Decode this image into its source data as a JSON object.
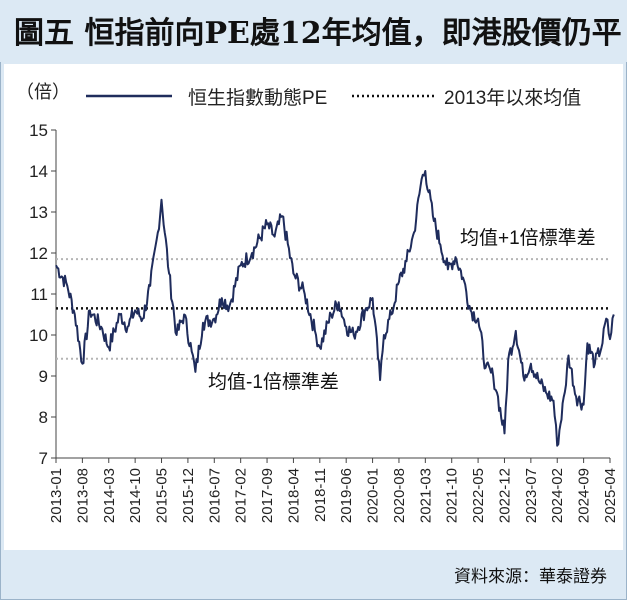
{
  "title": "圖五 恒指前向PE處12年均值，即港股價仍平",
  "source": "資料來源：華泰證券",
  "colors": {
    "series": "#1f2c5c",
    "mean": "#111111",
    "band": "#b5b5b5",
    "background": "#dce9f4"
  },
  "chart_data": {
    "type": "line",
    "yunit": "（倍）",
    "ylim": [
      7,
      15
    ],
    "yticks": [
      "15",
      "14",
      "13",
      "12",
      "11",
      "10",
      "9",
      "8",
      "7"
    ],
    "xticks": [
      "2013-01",
      "2013-08",
      "2014-03",
      "2014-10",
      "2015-05",
      "2015-12",
      "2016-07",
      "2017-02",
      "2017-09",
      "2018-04",
      "2018-11",
      "2019-06",
      "2020-01",
      "2020-08",
      "2021-03",
      "2021-10",
      "2022-05",
      "2022-12",
      "2023-07",
      "2024-02",
      "2024-09",
      "2025-04"
    ],
    "legend": [
      {
        "label": "恒生指數動態PE",
        "style": "solid"
      },
      {
        "label": "2013年以來均值",
        "style": "dotted"
      }
    ],
    "mean": 10.65,
    "upper": 11.85,
    "lower": 9.42,
    "annotations": {
      "upper": "均值+1倍標準差",
      "lower": "均值-1倍標準差"
    },
    "series": [
      {
        "name": "恒生指數動態PE",
        "x": [
          "2013-01",
          "2013-04",
          "2013-06",
          "2013-08",
          "2013-10",
          "2014-01",
          "2014-03",
          "2014-06",
          "2014-08",
          "2014-10",
          "2014-12",
          "2015-02",
          "2015-04",
          "2015-05",
          "2015-07",
          "2015-09",
          "2015-11",
          "2016-01",
          "2016-02",
          "2016-04",
          "2016-07",
          "2016-09",
          "2016-11",
          "2017-02",
          "2017-05",
          "2017-09",
          "2017-11",
          "2018-01",
          "2018-04",
          "2018-07",
          "2018-10",
          "2018-11",
          "2019-02",
          "2019-04",
          "2019-06",
          "2019-08",
          "2019-11",
          "2020-01",
          "2020-03",
          "2020-04",
          "2020-06",
          "2020-08",
          "2020-10",
          "2020-12",
          "2021-02",
          "2021-03",
          "2021-05",
          "2021-07",
          "2021-09",
          "2021-11",
          "2022-01",
          "2022-03",
          "2022-05",
          "2022-07",
          "2022-09",
          "2022-10",
          "2022-12",
          "2023-01",
          "2023-03",
          "2023-05",
          "2023-07",
          "2023-09",
          "2023-11",
          "2024-01",
          "2024-02",
          "2024-04",
          "2024-05",
          "2024-07",
          "2024-09",
          "2024-10",
          "2024-12",
          "2025-02",
          "2025-03",
          "2025-04",
          "2025-05"
        ],
        "values": [
          11.7,
          11.2,
          10.5,
          9.3,
          10.6,
          10.2,
          9.7,
          10.5,
          10.2,
          10.6,
          10.4,
          11.2,
          12.5,
          13.3,
          11.5,
          10.0,
          10.5,
          9.6,
          9.1,
          10.3,
          10.4,
          10.9,
          10.7,
          11.7,
          12.0,
          12.7,
          12.4,
          12.9,
          11.5,
          11.0,
          10.0,
          9.7,
          10.5,
          10.8,
          10.2,
          10.0,
          10.6,
          10.9,
          8.9,
          10.0,
          10.5,
          11.3,
          11.8,
          12.5,
          13.8,
          14.0,
          12.9,
          12.2,
          11.6,
          11.9,
          11.4,
          10.6,
          10.4,
          9.2,
          9.0,
          8.6,
          7.6,
          9.4,
          10.1,
          9.0,
          9.3,
          8.9,
          8.6,
          8.4,
          7.3,
          8.6,
          9.5,
          8.5,
          8.3,
          9.8,
          9.3,
          9.8,
          10.4,
          9.9,
          10.5
        ]
      }
    ]
  }
}
